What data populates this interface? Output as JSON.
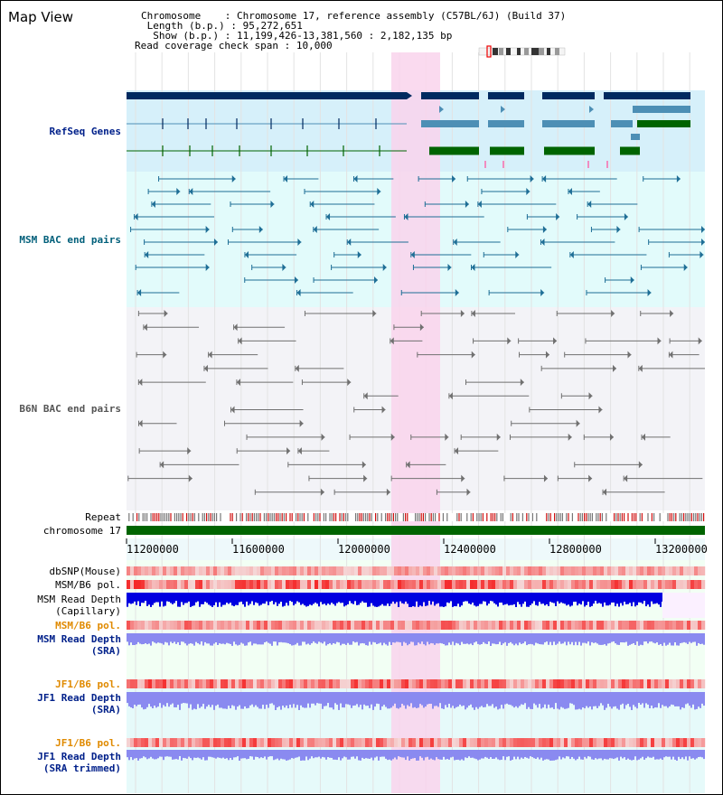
{
  "header": {
    "title": "Map View",
    "chromosome_label": "Chromosome",
    "chromosome_value": "Chromosome 17, reference assembly (C57BL/6J) (Build 37)",
    "length_label": "Length (b.p.)",
    "length_value": "95,272,651",
    "show_label": "Show (b.p.)",
    "show_value": "11,199,426-13,381,560 : 2,182,135 bp",
    "coverage_label": "Read coverage check span",
    "coverage_value": "10,000"
  },
  "tracks": {
    "refseq": "RefSeq Genes",
    "msm_bac": "MSM BAC end pairs",
    "b6n_bac": "B6N BAC end pairs",
    "repeat": "Repeat",
    "chromosome": "chromosome 17",
    "dbsnp": "dbSNP(Mouse)",
    "msm_b6_pol_1": "MSM/B6 pol.",
    "msm_depth_cap_1": "MSM Read Depth",
    "msm_depth_cap_2": "(Capillary)",
    "msm_b6_pol_2": "MSM/B6 pol.",
    "msm_depth_sra_1": "MSM Read Depth",
    "msm_depth_sra_2": "(SRA)",
    "jf1_b6_pol_1": "JF1/B6 pol.",
    "jf1_depth_sra_1": "JF1 Read Depth",
    "jf1_depth_sra_2": "(SRA)",
    "jf1_b6_pol_2": "JF1/B6 pol.",
    "jf1_depth_trim_1": "JF1 Read Depth",
    "jf1_depth_trim_2": "(SRA trimmed)"
  },
  "axis": {
    "ticks": [
      "11200000",
      "11600000",
      "12000000",
      "12400000",
      "12800000",
      "13200000"
    ]
  },
  "colors": {
    "refseq_bg": "#d6f0fa",
    "msm_bg": "#e2fbfb",
    "b6n_bg": "#f3f3f7",
    "highlight": "#f9d3ec",
    "gene_navy": "#002a60",
    "gene_steel": "#4d8fb5",
    "gene_green": "#006400",
    "msm_pair": "#1e6e96",
    "b6n_pair": "#707070",
    "depth_blue": "#0000e0",
    "depth_lavender": "#8a8af0",
    "label_navy": "#00208a",
    "label_teal": "#005f7a",
    "label_orange": "#e08a00"
  }
}
